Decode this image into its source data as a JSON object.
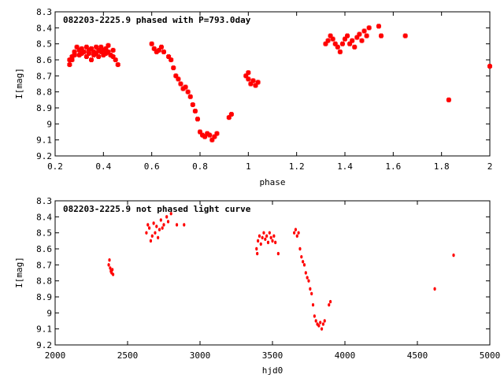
{
  "chart_data": [
    {
      "type": "scatter",
      "title": "082203-2225.9 phased with P=793.0day",
      "xlabel": "phase",
      "ylabel": "I[mag]",
      "xlim": [
        0.2,
        2.0
      ],
      "ylim": [
        9.2,
        8.3
      ],
      "y_inverted": true,
      "xticks": [
        "0.2",
        "0.4",
        "0.6",
        "0.8",
        "1",
        "1.2",
        "1.4",
        "1.6",
        "1.8",
        "2"
      ],
      "yticks": [
        "8.3",
        "8.4",
        "8.5",
        "8.6",
        "8.7",
        "8.8",
        "8.9",
        "9",
        "9.1",
        "9.2"
      ],
      "marker": "cross",
      "color": "#ff0000",
      "grid": false,
      "legend": "none",
      "series": [
        {
          "x": [
            0.26,
            0.26,
            0.27,
            0.27,
            0.28,
            0.28,
            0.29,
            0.3,
            0.3,
            0.31,
            0.31,
            0.32,
            0.33,
            0.33,
            0.34,
            0.34,
            0.35,
            0.35,
            0.36,
            0.36,
            0.37,
            0.37,
            0.38,
            0.38,
            0.39,
            0.39,
            0.4,
            0.4,
            0.41,
            0.41,
            0.42,
            0.42,
            0.43,
            0.44,
            0.44,
            0.45,
            0.46,
            0.6,
            0.61,
            0.62,
            0.63,
            0.64,
            0.65,
            0.67,
            0.68,
            0.69,
            0.7,
            0.71,
            0.72,
            0.73,
            0.74,
            0.75,
            0.76,
            0.77,
            0.78,
            0.79,
            0.8,
            0.81,
            0.82,
            0.83,
            0.84,
            0.85,
            0.86,
            0.87,
            0.92,
            0.93,
            0.99,
            1.0,
            1.0,
            1.01,
            1.02,
            1.03,
            1.04,
            1.32,
            1.33,
            1.34,
            1.35,
            1.36,
            1.37,
            1.38,
            1.39,
            1.4,
            1.41,
            1.42,
            1.43,
            1.44,
            1.45,
            1.46,
            1.47,
            1.48,
            1.49,
            1.5,
            1.54,
            1.55,
            1.65,
            1.83,
            2.0
          ],
          "y": [
            8.6,
            8.63,
            8.58,
            8.6,
            8.57,
            8.55,
            8.52,
            8.54,
            8.57,
            8.53,
            8.56,
            8.55,
            8.52,
            8.58,
            8.54,
            8.56,
            8.53,
            8.6,
            8.55,
            8.57,
            8.52,
            8.56,
            8.54,
            8.58,
            8.55,
            8.52,
            8.57,
            8.54,
            8.56,
            8.53,
            8.51,
            8.55,
            8.57,
            8.54,
            8.58,
            8.6,
            8.63,
            8.5,
            8.53,
            8.55,
            8.54,
            8.52,
            8.55,
            8.58,
            8.6,
            8.65,
            8.7,
            8.72,
            8.75,
            8.78,
            8.77,
            8.8,
            8.83,
            8.88,
            8.92,
            8.97,
            9.05,
            9.07,
            9.08,
            9.06,
            9.07,
            9.1,
            9.08,
            9.06,
            8.96,
            8.94,
            8.7,
            8.72,
            8.68,
            8.75,
            8.73,
            8.76,
            8.74,
            8.5,
            8.48,
            8.45,
            8.47,
            8.5,
            8.52,
            8.55,
            8.5,
            8.47,
            8.45,
            8.5,
            8.48,
            8.52,
            8.46,
            8.44,
            8.48,
            8.42,
            8.45,
            8.4,
            8.39,
            8.45,
            8.45,
            8.85,
            8.64
          ]
        }
      ]
    },
    {
      "type": "scatter",
      "title": "082203-2225.9 not phased light curve",
      "xlabel": "hjd0",
      "ylabel": "I[mag]",
      "xlim": [
        2000,
        5000
      ],
      "ylim": [
        9.2,
        8.3
      ],
      "y_inverted": true,
      "xticks": [
        "2000",
        "2500",
        "3000",
        "3500",
        "4000",
        "4500",
        "5000"
      ],
      "yticks": [
        "8.3",
        "8.4",
        "8.5",
        "8.6",
        "8.7",
        "8.8",
        "8.9",
        "9",
        "9.1",
        "9.2"
      ],
      "marker": "dot",
      "color": "#ff0000",
      "grid": false,
      "legend": "none",
      "series": [
        {
          "x": [
            2370,
            2375,
            2380,
            2385,
            2390,
            2395,
            2400,
            2630,
            2640,
            2650,
            2660,
            2670,
            2680,
            2690,
            2700,
            2710,
            2720,
            2730,
            2740,
            2750,
            2770,
            2780,
            2800,
            2840,
            2890,
            3390,
            3395,
            3400,
            3410,
            3420,
            3430,
            3440,
            3450,
            3460,
            3470,
            3480,
            3490,
            3500,
            3510,
            3520,
            3540,
            3650,
            3660,
            3670,
            3680,
            3690,
            3700,
            3710,
            3720,
            3730,
            3740,
            3750,
            3760,
            3770,
            3780,
            3790,
            3800,
            3810,
            3820,
            3830,
            3840,
            3850,
            3860,
            3890,
            3900,
            4620,
            4750
          ],
          "y": [
            8.7,
            8.67,
            8.72,
            8.74,
            8.75,
            8.73,
            8.76,
            8.5,
            8.45,
            8.47,
            8.55,
            8.52,
            8.44,
            8.5,
            8.46,
            8.53,
            8.48,
            8.42,
            8.47,
            8.45,
            8.4,
            8.43,
            8.38,
            8.45,
            8.45,
            8.6,
            8.63,
            8.55,
            8.52,
            8.57,
            8.53,
            8.5,
            8.54,
            8.52,
            8.56,
            8.5,
            8.53,
            8.55,
            8.52,
            8.56,
            8.63,
            8.5,
            8.48,
            8.52,
            8.5,
            8.6,
            8.65,
            8.68,
            8.7,
            8.75,
            8.78,
            8.8,
            8.85,
            8.88,
            8.95,
            9.02,
            9.05,
            9.07,
            9.08,
            9.06,
            9.1,
            9.07,
            9.05,
            8.95,
            8.93,
            8.85,
            8.64
          ]
        }
      ]
    }
  ]
}
